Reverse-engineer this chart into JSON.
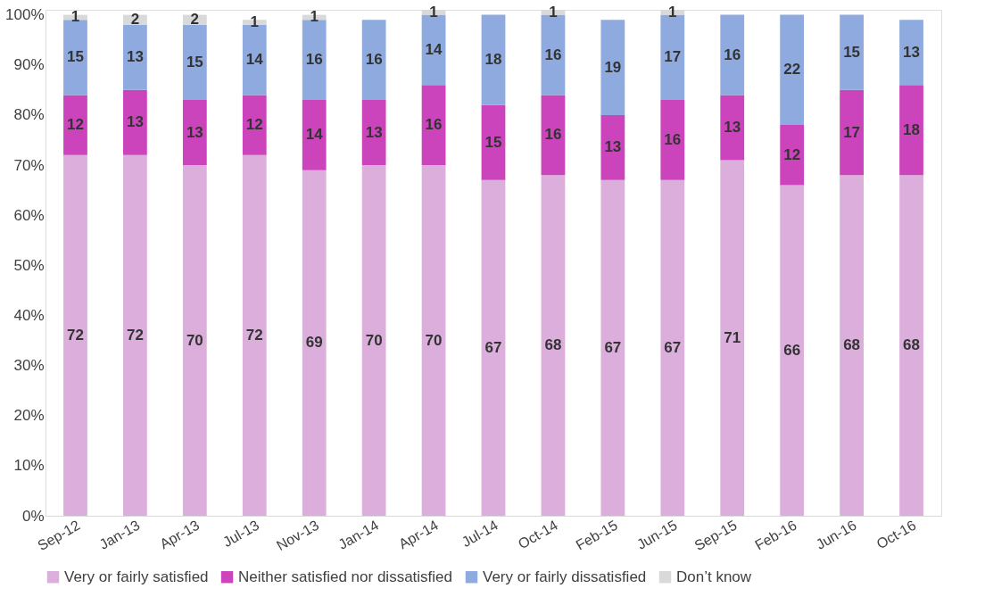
{
  "chart_data": {
    "type": "bar",
    "stacked": true,
    "data_labels": true,
    "legend": "bottom",
    "grid": false,
    "categories": [
      "Sep-12",
      "Jan-13",
      "Apr-13",
      "Jul-13",
      "Nov-13",
      "Jan-14",
      "Apr-14",
      "Jul-14",
      "Oct-14",
      "Feb-15",
      "Jun-15",
      "Sep-15",
      "Feb-16",
      "Jun-16",
      "Oct-16"
    ],
    "ylim": [
      0,
      101
    ],
    "yticks": [
      {
        "value": 0,
        "label": "0%"
      },
      {
        "value": 10,
        "label": "10%"
      },
      {
        "value": 20,
        "label": "20%"
      },
      {
        "value": 30,
        "label": "30%"
      },
      {
        "value": 40,
        "label": "40%"
      },
      {
        "value": 50,
        "label": "50%"
      },
      {
        "value": 60,
        "label": "60%"
      },
      {
        "value": 70,
        "label": "70%"
      },
      {
        "value": 80,
        "label": "80%"
      },
      {
        "value": 90,
        "label": "90%"
      },
      {
        "value": 100,
        "label": "100%"
      }
    ],
    "series": [
      {
        "name": "Very or fairly satisfied",
        "color": "#dcaedc",
        "values": [
          72,
          72,
          70,
          72,
          69,
          70,
          70,
          67,
          68,
          67,
          67,
          71,
          66,
          68,
          68
        ]
      },
      {
        "name": "Neither satisfied nor dissatisfied",
        "color": "#cc44bb",
        "values": [
          12,
          13,
          13,
          12,
          14,
          13,
          16,
          15,
          16,
          13,
          16,
          13,
          12,
          17,
          18
        ]
      },
      {
        "name": "Very or fairly dissatisfied",
        "color": "#8eaade",
        "values": [
          15,
          13,
          15,
          14,
          16,
          16,
          14,
          18,
          16,
          19,
          17,
          16,
          22,
          15,
          13
        ]
      },
      {
        "name": "Don’t know",
        "color": "#d9d9d9",
        "values": [
          1,
          2,
          2,
          1,
          1,
          null,
          1,
          null,
          1,
          null,
          1,
          null,
          null,
          null,
          null
        ]
      }
    ]
  }
}
